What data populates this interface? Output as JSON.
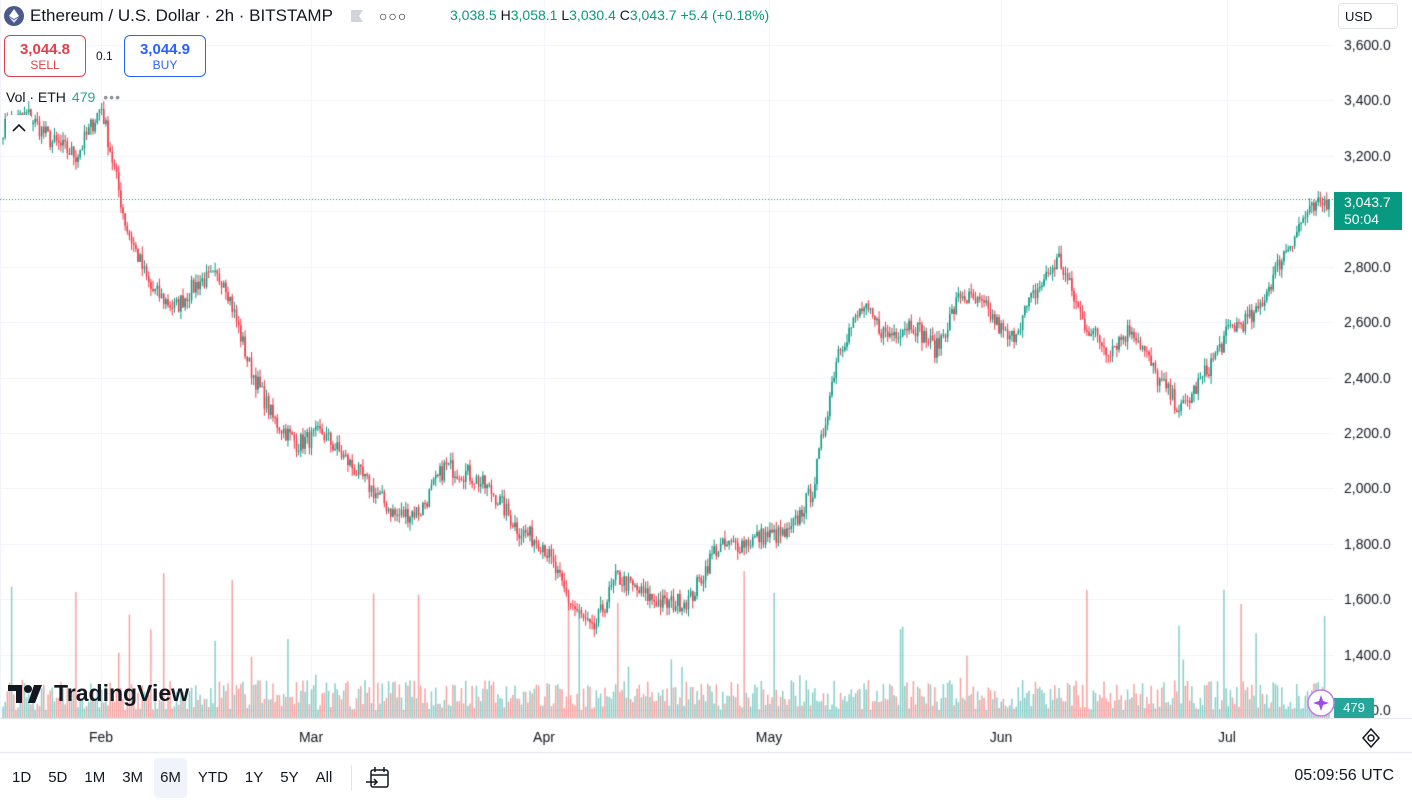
{
  "header": {
    "symbol_title": "Ethereum / U.S. Dollar · 2h · BITSTAMP",
    "ohlc": {
      "o_label": "",
      "o": "3,038.5",
      "h_label": "H",
      "h": "3,058.1",
      "l_label": "L",
      "l": "3,030.4",
      "c_label": "C",
      "c": "3,043.7",
      "change": "+5.4 (+0.18%)"
    },
    "currency": "USD"
  },
  "trade": {
    "sell_price": "3,044.8",
    "sell_label": "SELL",
    "spread": "0.1",
    "buy_price": "3,044.9",
    "buy_label": "BUY"
  },
  "volume_legend": {
    "label": "Vol · ETH",
    "value": "479",
    "more": "•••"
  },
  "price_axis": {
    "labels": [
      "3,600.0",
      "3,400.0",
      "3,200.0",
      "2,800.0",
      "2,600.0",
      "2,400.0",
      "2,200.0",
      "2,000.0",
      "1,800.0",
      "1,600.0",
      "1,400.0",
      "1,200.0"
    ],
    "last_price": "3,043.7",
    "countdown": "50:04",
    "volume_tag": "479"
  },
  "time_axis": {
    "labels": [
      "Feb",
      "Mar",
      "Apr",
      "May",
      "Jun",
      "Jul"
    ]
  },
  "ranges": [
    "1D",
    "5D",
    "1M",
    "3M",
    "6M",
    "YTD",
    "1Y",
    "5Y",
    "All"
  ],
  "active_range": "6M",
  "clock": "05:09:56 UTC",
  "brand": "TradingView",
  "colors": {
    "up": "#089981",
    "down": "#f23645",
    "vol_up": "#26a69a",
    "vol_down": "#ef5350",
    "grid": "#f0f3fa"
  },
  "chart_data": {
    "type": "candlestick",
    "symbol": "ETHUSD",
    "interval": "2h",
    "ylim": [
      1250,
      3700
    ],
    "price_anchors": {
      "x": [
        "Jan 12",
        "Jan 18",
        "Jan 24",
        "Jan 30",
        "Feb 1",
        "Feb 3",
        "Feb 8",
        "Feb 14",
        "Feb 20",
        "Feb 24",
        "Feb 26",
        "Feb 28",
        "Mar 3",
        "Mar 6",
        "Mar 9",
        "Mar 10",
        "Mar 13",
        "Mar 19",
        "Mar 24",
        "Mar 26",
        "Mar 29",
        "Apr 1",
        "Apr 5",
        "Apr 7",
        "Apr 8",
        "Apr 9",
        "Apr 12",
        "Apr 16",
        "Apr 20",
        "Apr 22",
        "Apr 25",
        "May 2",
        "May 6",
        "May 8",
        "May 10",
        "May 13",
        "May 17",
        "May 20",
        "May 24",
        "May 28",
        "Jun 2",
        "Jun 6",
        "Jun 10",
        "Jun 11",
        "Jun 13",
        "Jun 16",
        "Jun 20",
        "Jun 22",
        "Jun 24",
        "Jun 28",
        "Jul 2",
        "Jul 5",
        "Jul 9",
        "Jul 10",
        "Jul 13"
      ],
      "close": [
        3300,
        3350,
        3250,
        3200,
        3380,
        2950,
        2720,
        2650,
        2750,
        2760,
        2450,
        2250,
        2160,
        2200,
        2100,
        2000,
        1900,
        1920,
        2080,
        2050,
        1980,
        1850,
        1800,
        1600,
        1480,
        1680,
        1620,
        1580,
        1600,
        1780,
        1800,
        1830,
        1830,
        2000,
        2500,
        2650,
        2550,
        2600,
        2500,
        2700,
        2650,
        2530,
        2700,
        2830,
        2600,
        2500,
        2580,
        2400,
        2280,
        2420,
        2580,
        2620,
        2820,
        2980,
        3043.7
      ]
    },
    "last": 3043.7
  }
}
